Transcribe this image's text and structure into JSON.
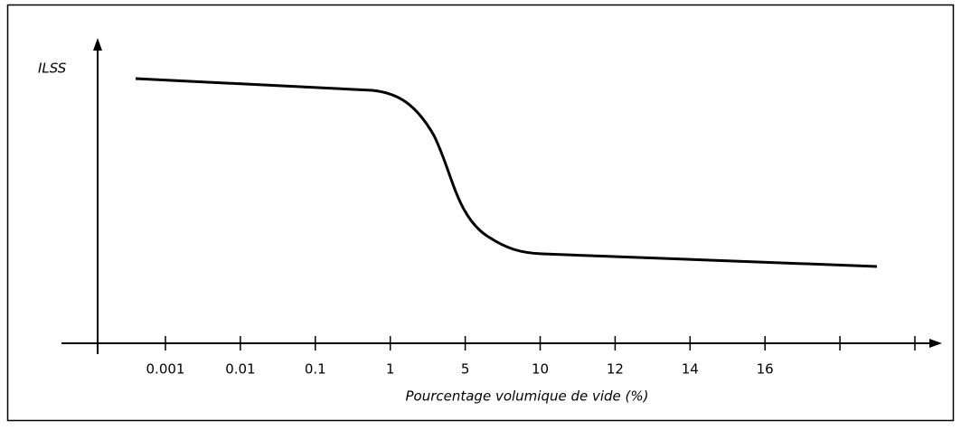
{
  "chart_data": {
    "type": "line",
    "y_label": "ILSS",
    "x_label": "Pourcentage volumique de vide (%)",
    "categories": [
      "0.001",
      "0.01",
      "0.1",
      "1",
      "5",
      "10",
      "12",
      "14",
      "16",
      null,
      null
    ]
  }
}
